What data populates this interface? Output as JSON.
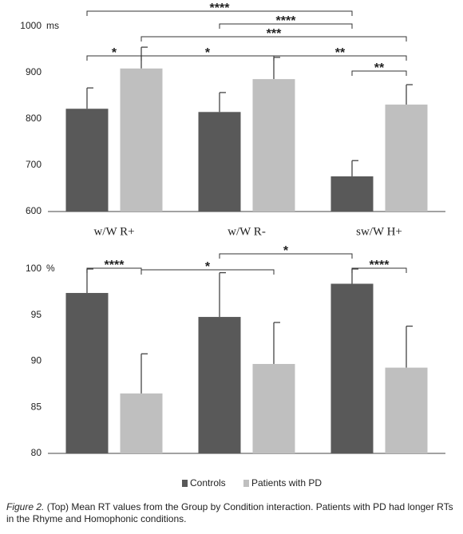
{
  "chart_data": [
    {
      "type": "bar",
      "unit": "ms",
      "categories": [
        "w/W R+",
        "w/W R-",
        "sw/W H+"
      ],
      "series": [
        {
          "color": "#595959",
          "values": [
            822,
            815,
            676
          ],
          "errors": [
            45,
            42,
            34
          ]
        },
        {
          "color": "#bfbfbf",
          "values": [
            909,
            886,
            831
          ],
          "errors": [
            46,
            47,
            43
          ]
        }
      ],
      "ylim": [
        600,
        1000
      ],
      "yticks": [
        600,
        700,
        800,
        900,
        1000
      ],
      "brackets": [
        {
          "from": [
            0,
            0
          ],
          "to": [
            2,
            0
          ],
          "label": "****"
        },
        {
          "from": [
            1,
            0
          ],
          "to": [
            2,
            0
          ],
          "label": "****"
        },
        {
          "from": [
            0,
            1
          ],
          "to": [
            2,
            1
          ],
          "label": "***"
        },
        {
          "from": [
            0,
            0
          ],
          "to": [
            0,
            1
          ],
          "label": "*"
        },
        {
          "from": [
            0,
            1
          ],
          "to": [
            1,
            1
          ],
          "label": "*"
        },
        {
          "from": [
            1,
            1
          ],
          "to": [
            2,
            1
          ],
          "label": "**"
        },
        {
          "from": [
            2,
            0
          ],
          "to": [
            2,
            1
          ],
          "label": "**"
        }
      ]
    },
    {
      "type": "bar",
      "unit": "%",
      "series": [
        {
          "name": "Controls",
          "color": "#595959",
          "values": [
            97.4,
            94.8,
            98.4
          ],
          "errors": [
            2.6,
            4.8,
            1.6
          ]
        },
        {
          "name": "Patients with PD",
          "color": "#bfbfbf",
          "values": [
            86.5,
            89.7,
            89.3
          ],
          "errors": [
            4.3,
            4.5,
            4.5
          ]
        }
      ],
      "ylim": [
        80,
        100
      ],
      "yticks": [
        80,
        85,
        90,
        95,
        100
      ],
      "brackets": [
        {
          "from": [
            0,
            0
          ],
          "to": [
            0,
            1
          ],
          "label": "****"
        },
        {
          "from": [
            0,
            1
          ],
          "to": [
            1,
            1
          ],
          "label": "*"
        },
        {
          "from": [
            1,
            0
          ],
          "to": [
            2,
            0
          ],
          "label": "*"
        },
        {
          "from": [
            2,
            0
          ],
          "to": [
            2,
            1
          ],
          "label": "****"
        }
      ]
    }
  ],
  "caption": {
    "label": "Figure 2.",
    "text": "(Top) Mean RT values from the Group by Condition interaction. Patients with PD had longer RTs in the Rhyme and Homophonic conditions."
  }
}
